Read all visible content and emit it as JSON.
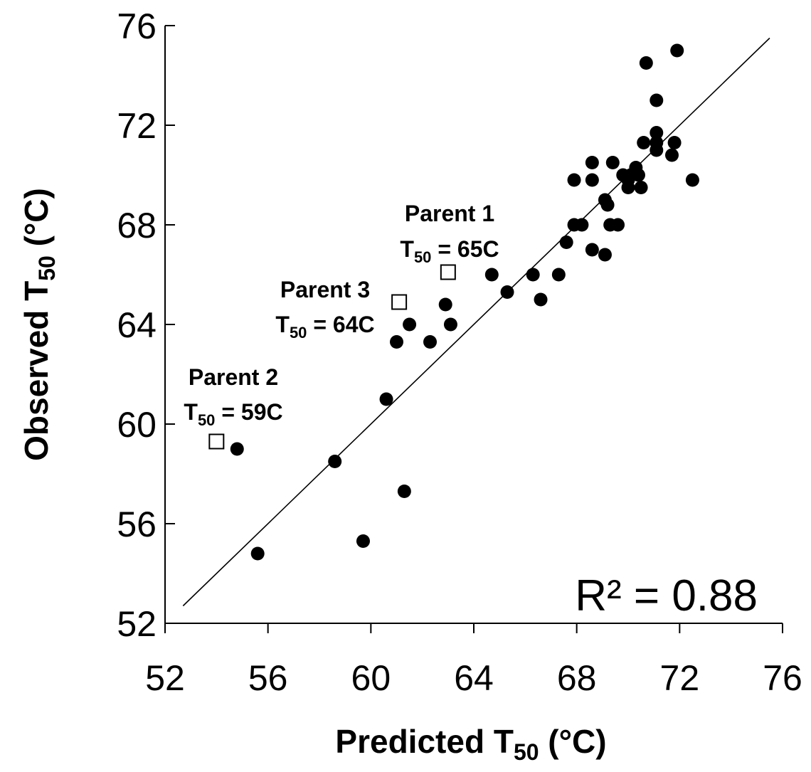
{
  "chart_data": {
    "type": "scatter",
    "title": "",
    "xlabel": "Predicted T",
    "xlabel_sub": "50",
    "xlabel_unit": " (°C)",
    "ylabel": "Observed T",
    "ylabel_sub": "50",
    "ylabel_unit": " (°C)",
    "xlim": [
      52,
      76
    ],
    "ylim": [
      52,
      76
    ],
    "xticks": [
      "52",
      "56",
      "60",
      "64",
      "68",
      "72",
      "76"
    ],
    "yticks": [
      "52",
      "56",
      "60",
      "64",
      "68",
      "72",
      "76"
    ],
    "grid": false,
    "legend": "none",
    "fit_line": {
      "x": [
        52.7,
        75.5
      ],
      "y": [
        52.7,
        75.5
      ]
    },
    "r_squared_label": "R² = 0.88",
    "series": [
      {
        "marker": "filled-circle",
        "color": "#000000",
        "points": [
          [
            54.8,
            59.0
          ],
          [
            55.6,
            54.8
          ],
          [
            58.6,
            58.5
          ],
          [
            59.7,
            55.3
          ],
          [
            60.6,
            61.0
          ],
          [
            61.0,
            63.3
          ],
          [
            61.3,
            57.3
          ],
          [
            61.5,
            64.0
          ],
          [
            62.3,
            63.3
          ],
          [
            62.9,
            64.8
          ],
          [
            63.1,
            64.0
          ],
          [
            64.7,
            66.0
          ],
          [
            65.3,
            65.3
          ],
          [
            66.3,
            66.0
          ],
          [
            66.6,
            65.0
          ],
          [
            67.3,
            66.0
          ],
          [
            67.6,
            67.3
          ],
          [
            67.9,
            69.8
          ],
          [
            67.9,
            68.0
          ],
          [
            68.2,
            68.0
          ],
          [
            68.6,
            70.5
          ],
          [
            68.6,
            69.8
          ],
          [
            68.6,
            67.0
          ],
          [
            69.1,
            69.0
          ],
          [
            69.1,
            66.8
          ],
          [
            69.2,
            68.8
          ],
          [
            69.3,
            68.0
          ],
          [
            69.4,
            70.5
          ],
          [
            69.6,
            68.0
          ],
          [
            69.8,
            70.0
          ],
          [
            70.0,
            69.8
          ],
          [
            70.0,
            69.5
          ],
          [
            70.1,
            70.0
          ],
          [
            70.3,
            70.3
          ],
          [
            70.4,
            70.0
          ],
          [
            70.5,
            69.5
          ],
          [
            70.6,
            71.3
          ],
          [
            70.7,
            74.5
          ],
          [
            71.1,
            73.0
          ],
          [
            71.1,
            71.7
          ],
          [
            71.1,
            71.3
          ],
          [
            71.1,
            71.0
          ],
          [
            71.7,
            70.8
          ],
          [
            71.8,
            71.3
          ],
          [
            71.9,
            75.0
          ],
          [
            72.5,
            69.8
          ]
        ]
      },
      {
        "marker": "open-square",
        "color": "#000000",
        "points": [
          [
            54.0,
            59.3
          ],
          [
            61.1,
            64.9
          ],
          [
            63.0,
            66.1
          ]
        ]
      }
    ],
    "annotations": [
      {
        "name": "parent-1",
        "line1": "Parent 1",
        "line2_main": "T",
        "line2_sub": "50",
        "line2_rest": " = 65C"
      },
      {
        "name": "parent-3",
        "line1": "Parent 3",
        "line2_main": "T",
        "line2_sub": "50",
        "line2_rest": " = 64C"
      },
      {
        "name": "parent-2",
        "line1": "Parent 2",
        "line2_main": "T",
        "line2_sub": "50",
        "line2_rest": " = 59C"
      }
    ]
  }
}
